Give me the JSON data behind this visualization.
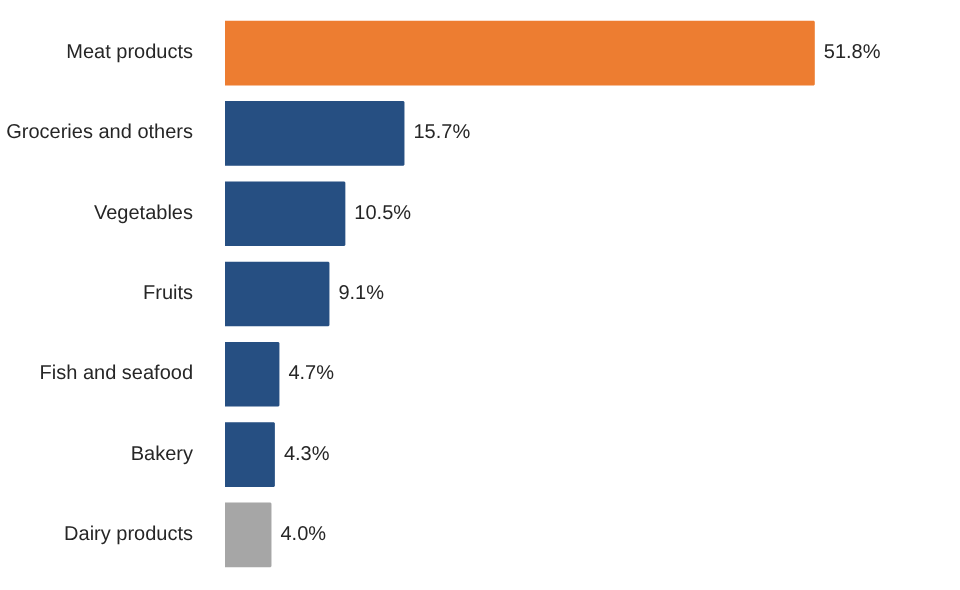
{
  "chart_data": {
    "type": "bar",
    "orientation": "horizontal",
    "categories": [
      "Meat products",
      "Groceries and others",
      "Vegetables",
      "Fruits",
      "Fish and seafood",
      "Bakery",
      "Dairy products"
    ],
    "values": [
      51.8,
      15.7,
      10.5,
      9.1,
      4.7,
      4.3,
      4.0
    ],
    "colors": [
      "#ed7d31",
      "#264f82",
      "#264f82",
      "#264f82",
      "#264f82",
      "#264f82",
      "#a6a6a6"
    ],
    "value_labels": [
      "51.8%",
      "15.7%",
      "10.5%",
      "9.1%",
      "4.7%",
      "4.3%",
      "4.0%"
    ]
  }
}
